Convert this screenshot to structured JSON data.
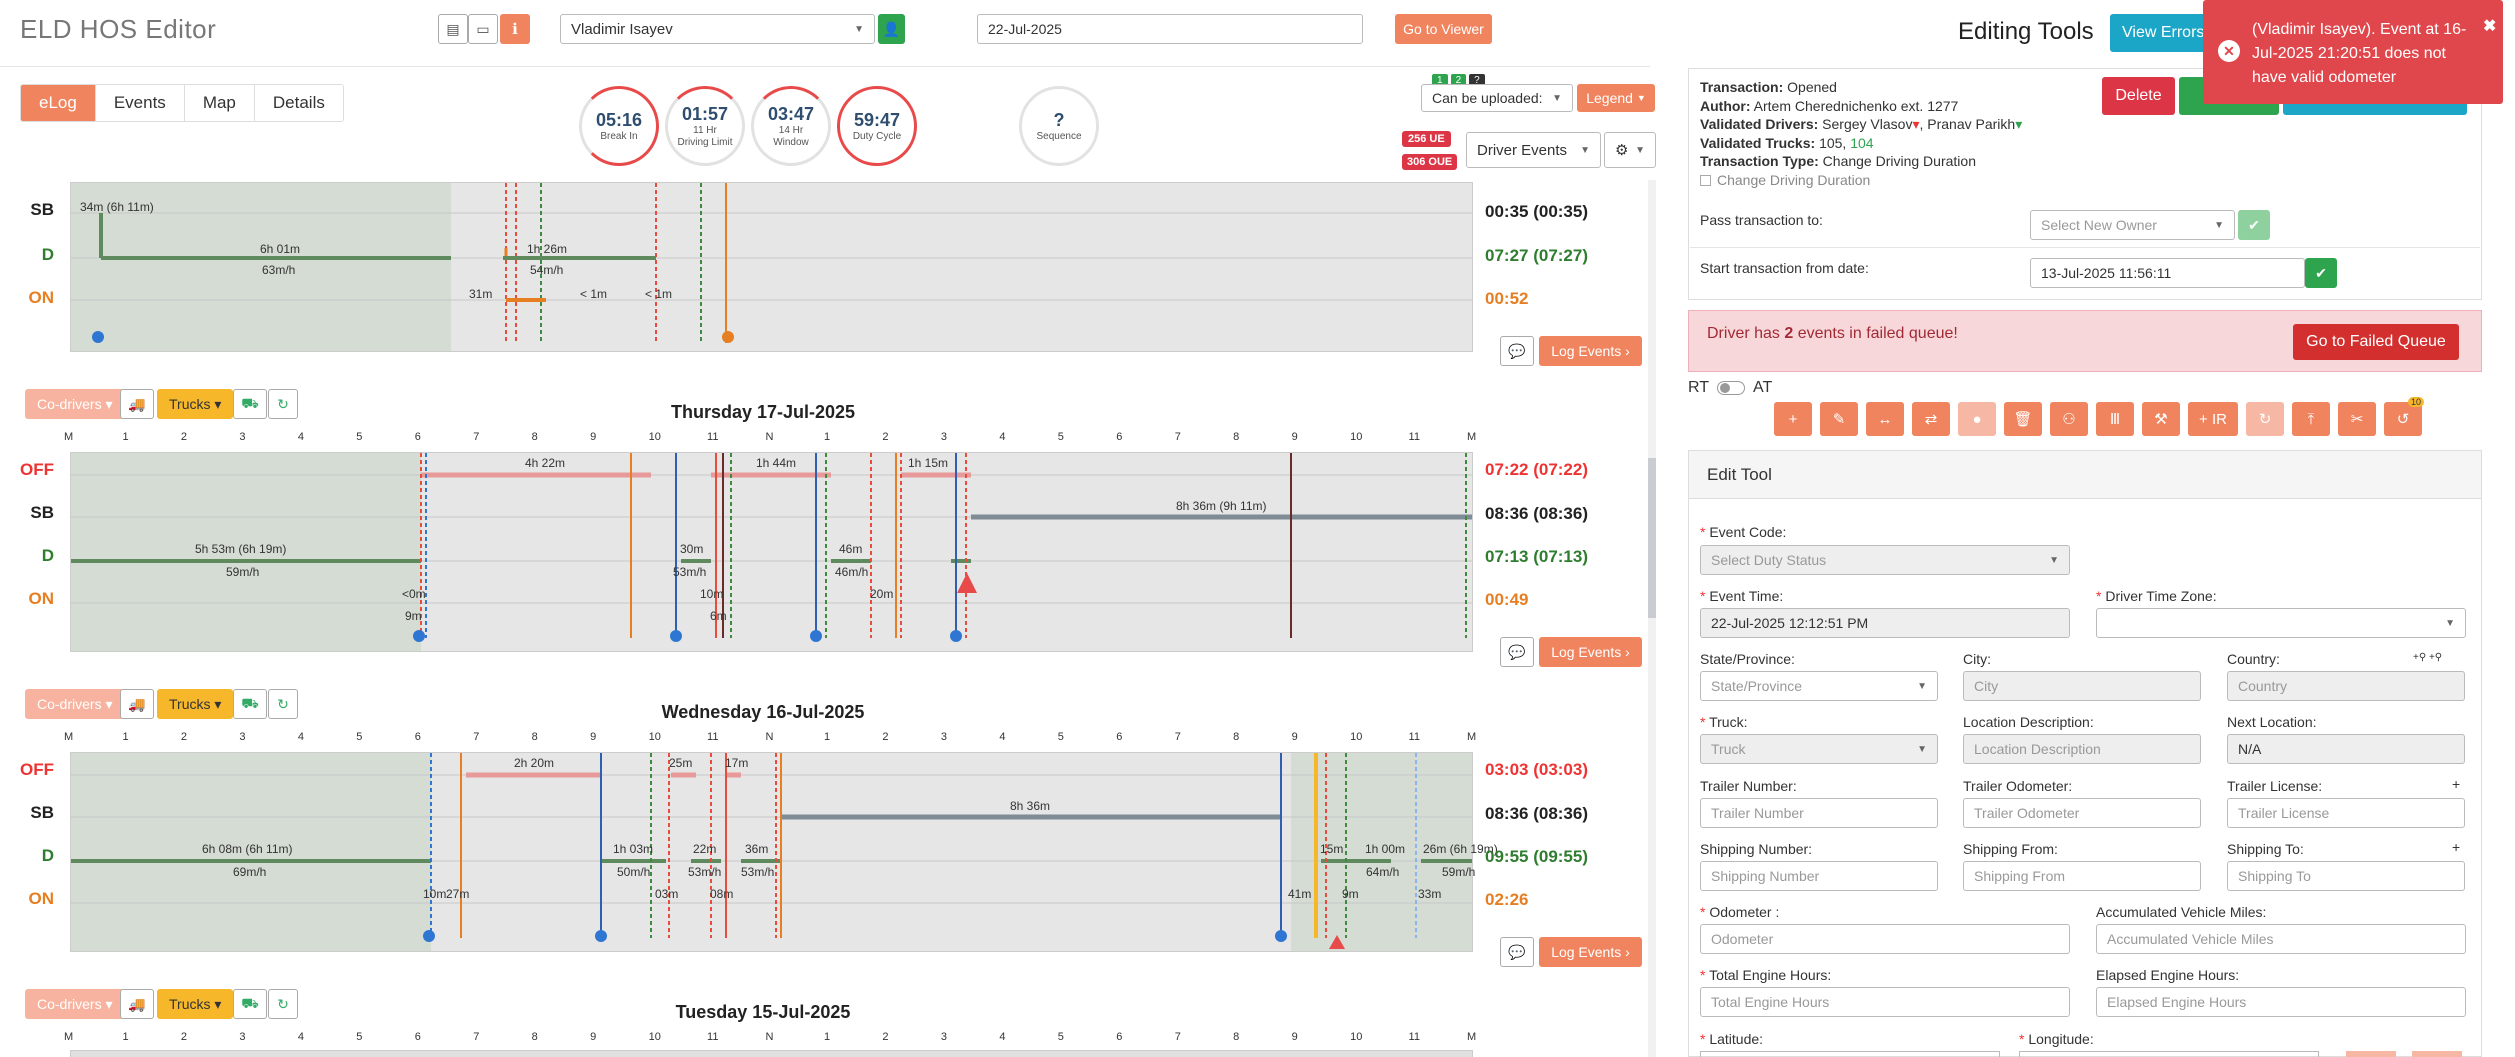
{
  "app_title": "ELD HOS Editor",
  "driver_select": "Vladimir Isayev",
  "date_field": "22-Jul-2025",
  "goto_viewer": "Go to Viewer",
  "tabs": [
    "eLog",
    "Events",
    "Map",
    "Details"
  ],
  "dials": [
    {
      "value": "05:16",
      "label": "Break In",
      "color": "#e84a4a",
      "fraction": 0.8
    },
    {
      "value": "01:57",
      "label": "11 Hr\nDriving Limit",
      "color": "#e84a4a",
      "fraction": 0.2
    },
    {
      "value": "03:47",
      "label": "14 Hr\nWindow",
      "color": "#e84a4a",
      "fraction": 0.3
    },
    {
      "value": "59:47",
      "label": "Duty Cycle",
      "color": "#e84a4a",
      "fraction": 0.9
    },
    {
      "value": "?",
      "label": "Sequence",
      "color": "#ccc",
      "fraction": 0
    }
  ],
  "badges": {
    "mini1": "1",
    "mini2": "2",
    "mini3": "?",
    "ue": "256 UE",
    "oue": "306 OUE"
  },
  "can_be_uploaded": "Can be uploaded:",
  "legend_btn": "Legend",
  "driver_events": "Driver Events",
  "row_labels": [
    "OFF",
    "SB",
    "D",
    "ON"
  ],
  "hour_ticks": [
    "M",
    "1",
    "2",
    "3",
    "4",
    "5",
    "6",
    "7",
    "8",
    "9",
    "10",
    "11",
    "N",
    "1",
    "2",
    "3",
    "4",
    "5",
    "6",
    "7",
    "8",
    "9",
    "10",
    "11",
    "M"
  ],
  "days": [
    {
      "title": "",
      "totals": {
        "SB": "00:35 (00:35)",
        "D": "07:27 (07:27)",
        "ON": "00:52"
      },
      "texts": [
        "34m (6h 11m)",
        "6h 01m",
        "63m/h",
        "1h 26m",
        "54m/h",
        "31m",
        "< 1m",
        "< 1m"
      ]
    },
    {
      "title": "Thursday 17-Jul-2025",
      "totals": {
        "OFF": "07:22 (07:22)",
        "SB": "08:36 (08:36)",
        "D": "07:13 (07:13)",
        "ON": "00:49"
      },
      "texts": [
        "4h 22m",
        "1h 44m",
        "1h 15m",
        "8h 36m (9h 11m)",
        "5h 53m (6h 19m)",
        "59m/h",
        "30m",
        "53m/h",
        "46m",
        "46m/h",
        "20m",
        "<0m",
        "9m",
        "10m",
        "6m"
      ]
    },
    {
      "title": "Wednesday 16-Jul-2025",
      "totals": {
        "OFF": "03:03 (03:03)",
        "SB": "08:36 (08:36)",
        "D": "09:55 (09:55)",
        "ON": "02:26"
      },
      "texts": [
        "2h 20m",
        "25m",
        "17m",
        "8h 36m",
        "6h 08m (6h 11m)",
        "69m/h",
        "1h 03m",
        "50m/h",
        "22m",
        "53m/h",
        "36m",
        "53m/h",
        "1h 00m",
        "64m/h",
        "26m (6h 19m)",
        "59m/h",
        "15m",
        "41m",
        "9m",
        "33m",
        "03m",
        "08m",
        "10m",
        "27m"
      ]
    },
    {
      "title": "Tuesday 15-Jul-2025",
      "totals": {},
      "texts": []
    }
  ],
  "co_drivers": "Co-drivers",
  "trucks": "Trucks",
  "log_events": "Log Events",
  "right": {
    "title": "Editing Tools",
    "view_errors": "View Errors",
    "toast": "(Vladimir Isayev). Event at 16-Jul-2025 21:20:51 does not have valid odometer",
    "transaction": {
      "status_label": "Transaction:",
      "status": "Opened",
      "author_label": "Author:",
      "author": "Artem Cherednichenko ext. 1277",
      "vd_label": "Validated Drivers:",
      "vd1": "Sergey Vlasov",
      "vd2": "Pranav Parikh",
      "vt_label": "Validated Trucks:",
      "vt1": "105,",
      "vt2": "104",
      "type_label": "Transaction Type:",
      "type": "Change Driving Duration",
      "check": "Change Driving Duration"
    },
    "delete": "Delete",
    "pass_label": "Pass transaction to:",
    "owner_ph": "Select New Owner",
    "start_label": "Start transaction from date:",
    "start_value": "13-Jul-2025 11:56:11",
    "failed_msg_a": "Driver has ",
    "failed_msg_b": "2",
    "failed_msg_c": " events in failed queue!",
    "failed_btn": "Go to Failed Queue",
    "rt": "RT",
    "at": "AT",
    "tools": [
      "+",
      "✎",
      "↔",
      "⇄",
      "●",
      "🗑",
      "⚇",
      "Ⅲ",
      "⚒",
      "+ IR",
      "↻",
      "⤒",
      "✂",
      "↺"
    ],
    "tool_badge": "10",
    "edit_tool": "Edit Tool",
    "fields": {
      "event_code": "Event Code:",
      "event_code_ph": "Select Duty Status",
      "event_time": "Event Time:",
      "event_time_val": "22-Jul-2025 12:12:51 PM",
      "tz": "Driver Time Zone:",
      "state": "State/Province:",
      "state_ph": "State/Province",
      "city": "City:",
      "city_ph": "City",
      "country": "Country:",
      "country_ph": "Country",
      "truck": "Truck:",
      "truck_ph": "Truck",
      "locdesc": "Location Description:",
      "locdesc_ph": "Location Description",
      "nextloc": "Next Location:",
      "nextloc_val": "N/A",
      "trailer_num": "Trailer Number:",
      "trailer_num_ph": "Trailer Number",
      "trailer_odo": "Trailer Odometer:",
      "trailer_odo_ph": "Trailer Odometer",
      "trailer_lic": "Trailer License:",
      "trailer_lic_ph": "Trailer License",
      "ship_num": "Shipping Number:",
      "ship_num_ph": "Shipping Number",
      "ship_from": "Shipping From:",
      "ship_from_ph": "Shipping From",
      "ship_to": "Shipping To:",
      "ship_to_ph": "Shipping To",
      "odometer": "Odometer :",
      "odometer_ph": "Odometer",
      "avm": "Accumulated Vehicle Miles:",
      "avm_ph": "Accumulated Vehicle Miles",
      "teh": "Total Engine Hours:",
      "teh_ph": "Total Engine Hours",
      "eeh": "Elapsed Engine Hours:",
      "eeh_ph": "Elapsed Engine Hours",
      "lat": "Latitude:",
      "lon": "Longitude:"
    }
  }
}
